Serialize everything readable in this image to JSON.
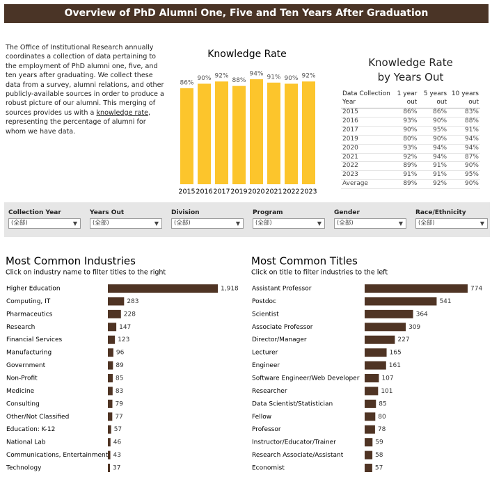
{
  "header": {
    "title": "Overview of PhD Alumni One, Five and Ten Years After Graduation"
  },
  "intro": {
    "text_before": "The Office of Institutional Research annually coordinates a collection of data pertaining to the employment of PhD alumni one, five, and ten years after graduating. We collect these data from a survey, alumni relations, and other publicly-available sources in order to produce a robust picture of our alumni. This merging of sources provides us with a ",
    "link": "knowledge rate",
    "text_after": ", representing the percentage of alumni for whom we have data."
  },
  "table": {
    "title_lines": [
      "Knowledge Rate",
      "by Years Out"
    ],
    "columns": [
      "Data Collection Year",
      "1 year out",
      "5 years out",
      "10 years out"
    ],
    "rows": [
      [
        "2015",
        "86%",
        "86%",
        "83%"
      ],
      [
        "2016",
        "93%",
        "90%",
        "88%"
      ],
      [
        "2017",
        "90%",
        "95%",
        "91%"
      ],
      [
        "2019",
        "80%",
        "90%",
        "94%"
      ],
      [
        "2020",
        "93%",
        "94%",
        "94%"
      ],
      [
        "2021",
        "92%",
        "94%",
        "87%"
      ],
      [
        "2022",
        "89%",
        "91%",
        "90%"
      ],
      [
        "2023",
        "91%",
        "91%",
        "95%"
      ],
      [
        "Average",
        "89%",
        "92%",
        "90%"
      ]
    ]
  },
  "filters": [
    {
      "label": "Collection Year",
      "value": "(全部)"
    },
    {
      "label": "Years Out",
      "value": "(全部)"
    },
    {
      "label": "Division",
      "value": "(全部)"
    },
    {
      "label": "Program",
      "value": "(全部)"
    },
    {
      "label": "Gender",
      "value": "(全部)"
    },
    {
      "label": "Race/Ethnicity",
      "value": "(全部)"
    }
  ],
  "chart_data": [
    {
      "type": "bar",
      "orientation": "vertical",
      "title": "Knowledge Rate",
      "color": "#fcc52c",
      "categories": [
        "2015",
        "2016",
        "2017",
        "2019",
        "2020",
        "2021",
        "2022",
        "2023"
      ],
      "values": [
        86,
        90,
        92,
        88,
        94,
        91,
        90,
        92
      ],
      "value_labels": [
        "86%",
        "90%",
        "92%",
        "88%",
        "94%",
        "91%",
        "90%",
        "92%"
      ]
    },
    {
      "type": "bar",
      "orientation": "horizontal",
      "title": "Most Common Industries",
      "subtitle": "Click on industry name to filter titles to the right",
      "color": "#4f3424",
      "categories": [
        "Higher Education",
        "Computing, IT",
        "Pharmaceutics",
        "Research",
        "Financial Services",
        "Manufacturing",
        "Government",
        "Non-Profit",
        "Medicine",
        "Consulting",
        "Other/Not Classified",
        "Education: K-12",
        "National Lab",
        "Communications, Entertainment",
        "Technology"
      ],
      "values": [
        1918,
        283,
        228,
        147,
        123,
        96,
        89,
        85,
        83,
        79,
        77,
        57,
        46,
        43,
        37
      ],
      "value_labels": [
        "1,918",
        "283",
        "228",
        "147",
        "123",
        "96",
        "89",
        "85",
        "83",
        "79",
        "77",
        "57",
        "46",
        "43",
        "37"
      ]
    },
    {
      "type": "bar",
      "orientation": "horizontal",
      "title": "Most Common Titles",
      "subtitle": "Click on title to filter industries to the left",
      "color": "#4f3424",
      "categories": [
        "Assistant Professor",
        "Postdoc",
        "Scientist",
        "Associate Professor",
        "Director/Manager",
        "Lecturer",
        "Engineer",
        "Software Engineer/Web Developer",
        "Researcher",
        "Data Scientist/Statistician",
        "Fellow",
        "Professor",
        "Instructor/Educator/Trainer",
        "Research Associate/Assistant",
        "Economist"
      ],
      "values": [
        774,
        541,
        364,
        309,
        227,
        165,
        161,
        107,
        101,
        85,
        80,
        78,
        59,
        58,
        57
      ]
    }
  ]
}
